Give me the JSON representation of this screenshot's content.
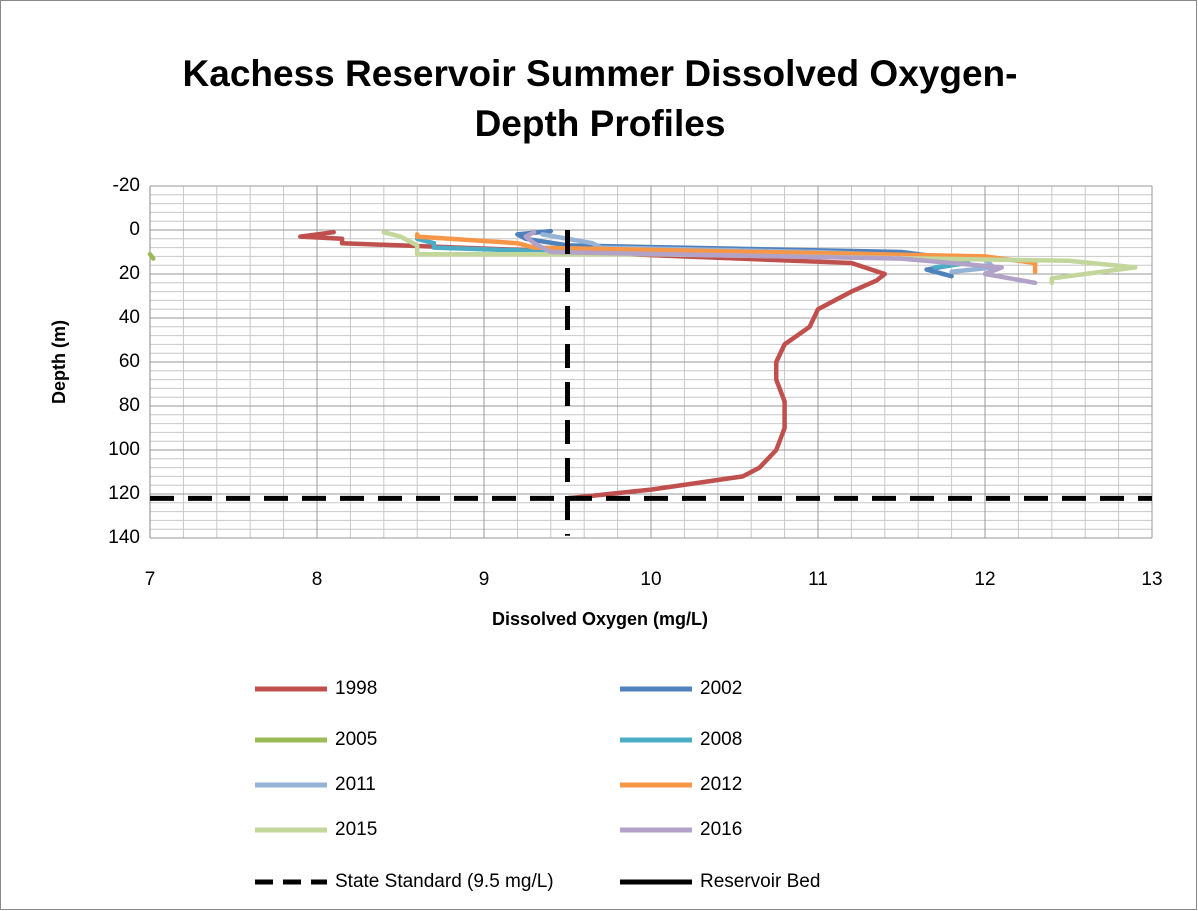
{
  "chart_data": {
    "type": "line",
    "title": [
      "Kachess Reservoir Summer Dissolved Oxygen-",
      "Depth Profiles"
    ],
    "x_label": "Dissolved Oxygen (mg/L)",
    "y_label": "Depth (m)",
    "xlim": [
      7,
      13
    ],
    "xticks": [
      7,
      8,
      9,
      10,
      11,
      12,
      13
    ],
    "ylim": [
      140,
      -20
    ],
    "yticks": [
      -20,
      0,
      20,
      40,
      60,
      80,
      100,
      120,
      140
    ],
    "grid": true,
    "minor_grid": true,
    "legend": "bottom",
    "series": [
      {
        "name": "1998",
        "color": "#c0504d",
        "x": [
          8.1,
          7.9,
          8.15,
          8.15,
          9.2,
          11.2,
          11.4,
          11.35,
          11.2,
          11.0,
          10.95,
          10.8,
          10.75,
          10.75,
          10.8,
          10.8,
          10.75,
          10.65,
          10.55,
          10.0,
          9.5
        ],
        "values": [
          1,
          3,
          4,
          6,
          9,
          15,
          20,
          23,
          28,
          36,
          44,
          52,
          60,
          68,
          78,
          90,
          100,
          108,
          112,
          118,
          122
        ]
      },
      {
        "name": "2002",
        "color": "#4f81bd",
        "x": [
          9.4,
          9.2,
          9.25,
          9.5,
          11.5,
          11.7,
          11.8,
          11.65,
          11.8
        ],
        "values": [
          0.5,
          2,
          4,
          7,
          10,
          12,
          16,
          18,
          21
        ]
      },
      {
        "name": "2005",
        "color": "#9bbb59",
        "x": [
          7.0,
          7.02
        ],
        "values": [
          11,
          13
        ]
      },
      {
        "name": "2008",
        "color": "#4bacc6",
        "x": [
          8.6,
          8.7,
          8.7,
          9.5,
          11.5,
          11.9,
          11.7
        ],
        "values": [
          4,
          6,
          8,
          10,
          12,
          15,
          17
        ]
      },
      {
        "name": "2011",
        "color": "#95b3d7",
        "x": [
          9.35,
          9.65,
          9.7,
          11.0,
          12.0,
          12.05,
          11.8
        ],
        "values": [
          2,
          6,
          8,
          10,
          13,
          17,
          19
        ]
      },
      {
        "name": "2012",
        "color": "#f79646",
        "x": [
          8.6,
          8.6,
          9.2,
          9.3,
          12.0,
          12.3,
          12.3
        ],
        "values": [
          2,
          3,
          6,
          8,
          12,
          15,
          19
        ]
      },
      {
        "name": "2015",
        "color": "#c3d69b",
        "x": [
          8.4,
          8.5,
          8.6,
          8.6,
          10.0,
          12.5,
          12.9,
          12.4,
          12.4
        ],
        "values": [
          1,
          3,
          7,
          11,
          11,
          14,
          17,
          22,
          24
        ]
      },
      {
        "name": "2016",
        "color": "#b2a2c7",
        "x": [
          9.3,
          9.25,
          9.3,
          9.4,
          11.5,
          12.1,
          12.0,
          12.3
        ],
        "values": [
          1,
          3,
          6,
          10,
          13,
          17,
          20,
          24
        ]
      },
      {
        "name": "State Standard (9.5 mg/L)",
        "color": "#000000",
        "dash": true,
        "x": [
          9.5,
          9.5
        ],
        "values": [
          0,
          139
        ]
      },
      {
        "name": "Reservoir Bed",
        "color": "#000000",
        "dash": true,
        "x": [
          7,
          13
        ],
        "values": [
          122,
          122
        ]
      }
    ]
  }
}
